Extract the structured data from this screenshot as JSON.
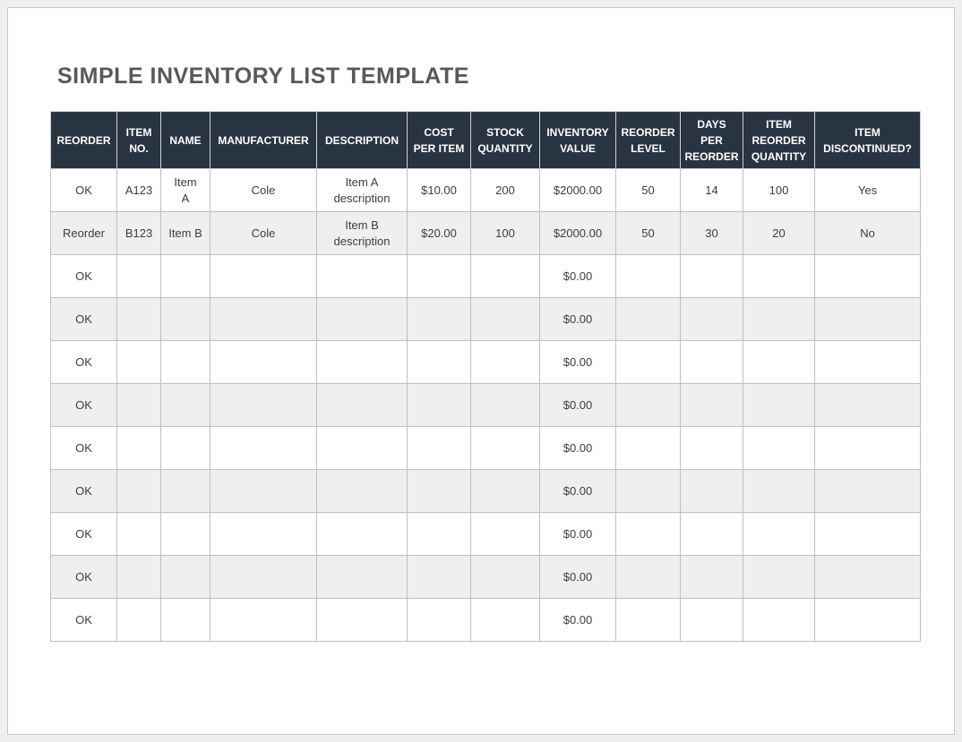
{
  "page": {
    "title": "SIMPLE INVENTORY LIST TEMPLATE"
  },
  "colors": {
    "header_bg": "#293442",
    "header_text": "#ffffff",
    "row_alt_bg": "#efefef",
    "border": "#bfbfbf",
    "title_text": "#595959",
    "cell_text": "#3d3d3d",
    "canvas_bg": "#efefef",
    "page_bg": "#ffffff"
  },
  "table": {
    "columns": [
      {
        "key": "reorder",
        "label": "REORDER"
      },
      {
        "key": "item-no",
        "label": "ITEM\nNO."
      },
      {
        "key": "name",
        "label": "NAME"
      },
      {
        "key": "manufacturer",
        "label": "MANUFACTURER"
      },
      {
        "key": "description",
        "label": "DESCRIPTION"
      },
      {
        "key": "cost-per-item",
        "label": "COST\nPER ITEM"
      },
      {
        "key": "stock-quantity",
        "label": "STOCK\nQUANTITY"
      },
      {
        "key": "inventory-value",
        "label": "INVENTORY\nVALUE"
      },
      {
        "key": "reorder-level",
        "label": "REORDER\nLEVEL"
      },
      {
        "key": "days-per-reorder",
        "label": "DAYS\nPER\nREORDER"
      },
      {
        "key": "item-reorder-qty",
        "label": "ITEM\nREORDER\nQUANTITY"
      },
      {
        "key": "item-discontinued",
        "label": "ITEM\nDISCONTINUED?"
      }
    ],
    "rows": [
      [
        "OK",
        "A123",
        "Item\nA",
        "Cole",
        "Item A description",
        "$10.00",
        "200",
        "$2000.00",
        "50",
        "14",
        "100",
        "Yes"
      ],
      [
        "Reorder",
        "B123",
        "Item B",
        "Cole",
        "Item B description",
        "$20.00",
        "100",
        "$2000.00",
        "50",
        "30",
        "20",
        "No"
      ],
      [
        "OK",
        "",
        "",
        "",
        "",
        "",
        "",
        "$0.00",
        "",
        "",
        "",
        ""
      ],
      [
        "OK",
        "",
        "",
        "",
        "",
        "",
        "",
        "$0.00",
        "",
        "",
        "",
        ""
      ],
      [
        "OK",
        "",
        "",
        "",
        "",
        "",
        "",
        "$0.00",
        "",
        "",
        "",
        ""
      ],
      [
        "OK",
        "",
        "",
        "",
        "",
        "",
        "",
        "$0.00",
        "",
        "",
        "",
        ""
      ],
      [
        "OK",
        "",
        "",
        "",
        "",
        "",
        "",
        "$0.00",
        "",
        "",
        "",
        ""
      ],
      [
        "OK",
        "",
        "",
        "",
        "",
        "",
        "",
        "$0.00",
        "",
        "",
        "",
        ""
      ],
      [
        "OK",
        "",
        "",
        "",
        "",
        "",
        "",
        "$0.00",
        "",
        "",
        "",
        ""
      ],
      [
        "OK",
        "",
        "",
        "",
        "",
        "",
        "",
        "$0.00",
        "",
        "",
        "",
        ""
      ],
      [
        "OK",
        "",
        "",
        "",
        "",
        "",
        "",
        "$0.00",
        "",
        "",
        "",
        ""
      ]
    ]
  }
}
